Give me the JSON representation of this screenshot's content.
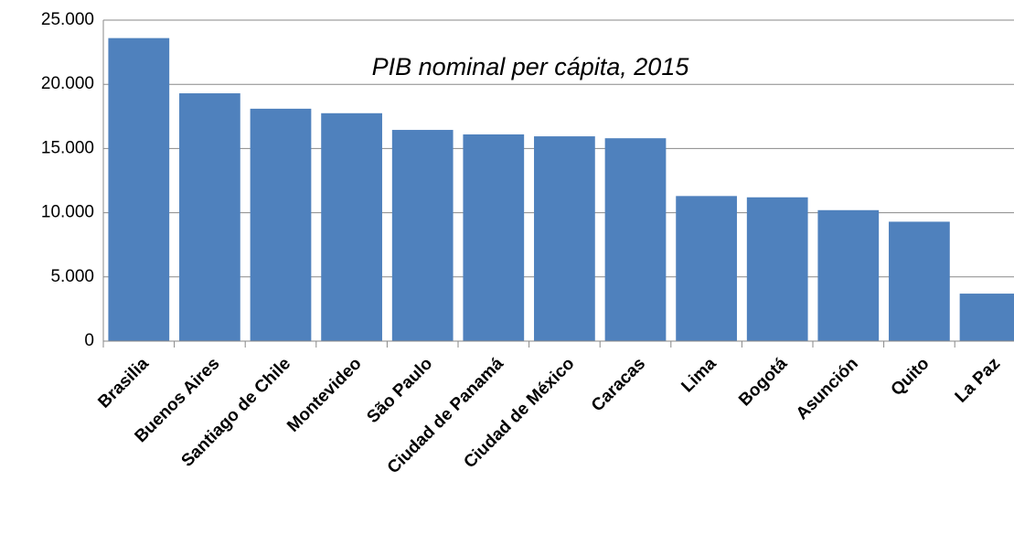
{
  "chart_data": {
    "type": "bar",
    "title": "PIB nominal per cápita, 2015",
    "categories": [
      "Brasilia",
      "Buenos Aires",
      "Santiago de Chile",
      "Montevideo",
      "São Paulo",
      "Ciudad de Panamá",
      "Ciudad de México",
      "Caracas",
      "Lima",
      "Bogotá",
      "Asunción",
      "Quito",
      "La Paz"
    ],
    "values": [
      23600,
      19300,
      18100,
      17750,
      16450,
      16100,
      15950,
      15800,
      11300,
      11200,
      10200,
      9300,
      3700
    ],
    "color": "#4f81bd",
    "ylim": [
      0,
      25000
    ],
    "yticks": [
      0,
      {
        "value": 5000,
        "label": "5.000"
      },
      {
        "value": 10000,
        "label": "10.000"
      },
      {
        "value": 15000,
        "label": "15.000"
      },
      {
        "value": 20000,
        "label": "20.000"
      },
      {
        "value": 25000,
        "label": "25.000"
      }
    ],
    "grid": true
  }
}
